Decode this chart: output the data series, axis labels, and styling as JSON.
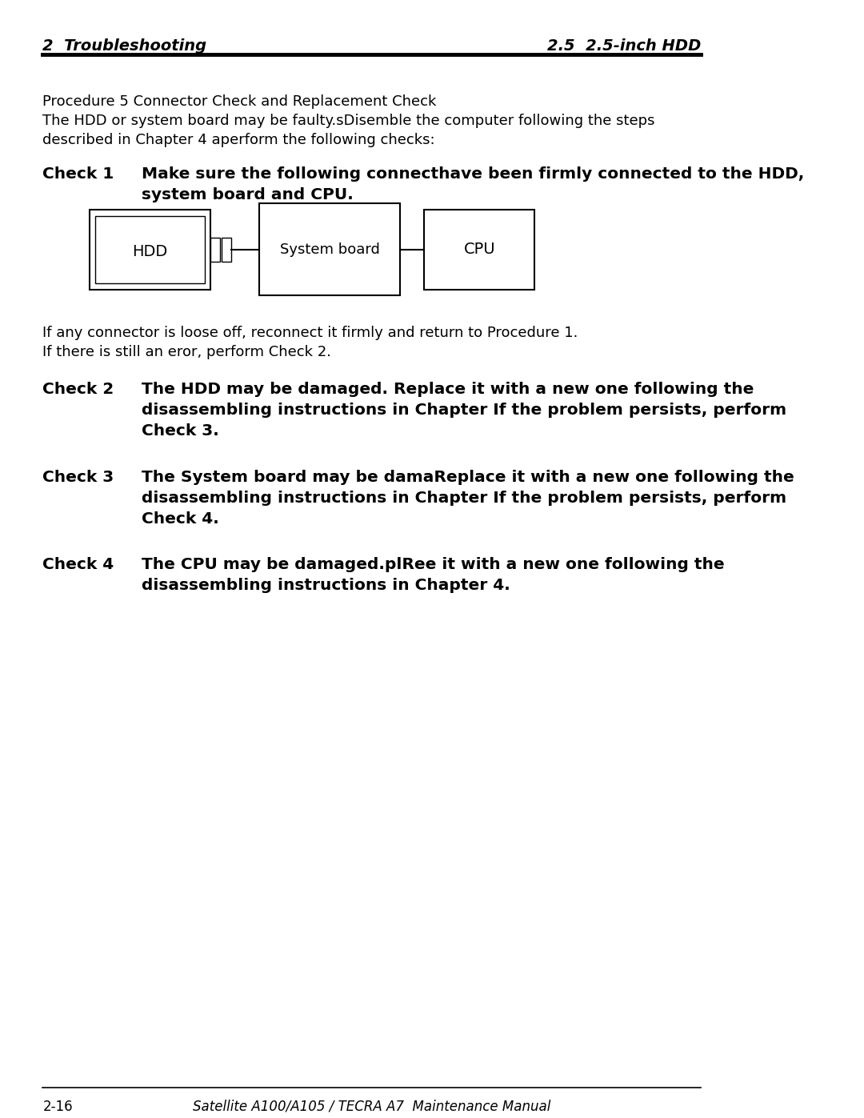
{
  "header_left": "2  Troubleshooting",
  "header_right": "2.5  2.5-inch HDD",
  "footer_left": "2-16",
  "footer_center": "Satellite A100/A105 / TECRA A7  Maintenance Manual",
  "intro_line1": "Procedure 5 Connector Check and Replacement Check",
  "intro_line2": "The HDD or system board may be faulty.sDisemble the computer following the steps",
  "intro_line3": "described in Chapter 4 aperform the following checks:",
  "check1_label": "Check 1",
  "check1_text_line1": "Make sure the following connecthave been firmly connected to the HDD,",
  "check1_text_line2": "system board and CPU.",
  "diagram_labels": [
    "HDD",
    "System board",
    "CPU"
  ],
  "connector_text_line1": "If any connector is loose off, reconnect it firmly and return to Procedure 1.",
  "connector_text_line2": "If there is still an eror, perform Check 2.",
  "check2_label": "Check 2",
  "check2_text_line1": "The HDD may be damaged. Replace it with a new one following the",
  "check2_text_line2": "disassembling instructions in Chapter If the problem persists, perform",
  "check2_text_line3": "Check 3.",
  "check3_label": "Check 3",
  "check3_text_line1": "The System board may be damaReplace it with a new one following the",
  "check3_text_line2": "disassembling instructions in Chapter If the problem persists, perform",
  "check3_text_line3": "Check 4.",
  "check4_label": "Check 4",
  "check4_text_line1": "The CPU may be damaged.plRee it with a new one following the",
  "check4_text_line2": "disassembling instructions in Chapter 4.",
  "bg_color": "#ffffff",
  "text_color": "#000000",
  "line_color": "#000000"
}
